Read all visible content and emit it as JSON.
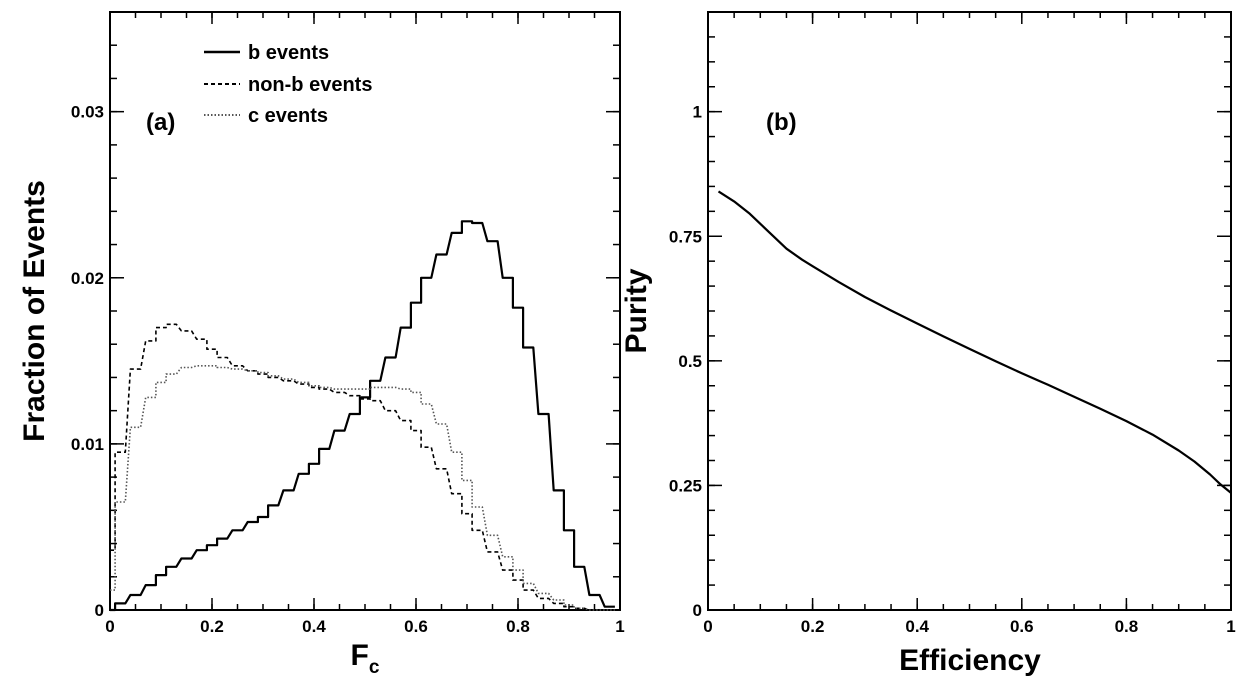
{
  "chart_data": [
    {
      "type": "line",
      "panel": "(a)",
      "xlabel": "F",
      "xlabel_sub": "c",
      "ylabel": "Fraction of Events",
      "xlim": [
        0,
        1
      ],
      "ylim": [
        0,
        0.036
      ],
      "xticks": [
        0,
        0.2,
        0.4,
        0.6,
        0.8,
        1
      ],
      "xtick_labels": [
        "0",
        "0.2",
        "0.4",
        "0.6",
        "0.8",
        "1"
      ],
      "yticks": [
        0,
        0.01,
        0.02,
        0.03
      ],
      "ytick_labels": [
        "0",
        "0.01",
        "0.02",
        "0.03"
      ],
      "legend_position": "top-center",
      "x": [
        0.0,
        0.02,
        0.05,
        0.08,
        0.1,
        0.12,
        0.15,
        0.18,
        0.2,
        0.22,
        0.25,
        0.28,
        0.3,
        0.32,
        0.35,
        0.38,
        0.4,
        0.42,
        0.45,
        0.48,
        0.5,
        0.52,
        0.55,
        0.58,
        0.6,
        0.62,
        0.65,
        0.68,
        0.7,
        0.72,
        0.75,
        0.78,
        0.8,
        0.82,
        0.85,
        0.88,
        0.9,
        0.92,
        0.95,
        0.98
      ],
      "series": [
        {
          "name": "b events",
          "style": "solid",
          "values": [
            0.0,
            0.0004,
            0.0009,
            0.0015,
            0.0021,
            0.0026,
            0.0031,
            0.0036,
            0.0039,
            0.0043,
            0.0048,
            0.0053,
            0.0056,
            0.0063,
            0.0072,
            0.0082,
            0.0088,
            0.0097,
            0.0108,
            0.0118,
            0.0128,
            0.0138,
            0.0152,
            0.017,
            0.0185,
            0.02,
            0.0214,
            0.0227,
            0.0234,
            0.0233,
            0.0222,
            0.02,
            0.0182,
            0.0158,
            0.0118,
            0.0072,
            0.0048,
            0.0026,
            0.0009,
            0.0002
          ]
        },
        {
          "name": "non-b events",
          "style": "dashed",
          "values": [
            0.0036,
            0.0095,
            0.0145,
            0.0162,
            0.017,
            0.0172,
            0.0168,
            0.0163,
            0.0157,
            0.0152,
            0.0147,
            0.0144,
            0.0142,
            0.014,
            0.0138,
            0.0136,
            0.0134,
            0.0133,
            0.0131,
            0.0129,
            0.0127,
            0.0126,
            0.012,
            0.0114,
            0.0108,
            0.0098,
            0.0085,
            0.007,
            0.0058,
            0.0048,
            0.0035,
            0.0024,
            0.0018,
            0.0012,
            0.0007,
            0.0004,
            0.0002,
            0.0001,
            0.0,
            0.0
          ]
        },
        {
          "name": "c events",
          "style": "dotted",
          "values": [
            0.0012,
            0.0065,
            0.011,
            0.0128,
            0.0137,
            0.0142,
            0.0146,
            0.0147,
            0.0147,
            0.0146,
            0.0145,
            0.0144,
            0.0143,
            0.0141,
            0.0139,
            0.0137,
            0.0135,
            0.0134,
            0.0133,
            0.0133,
            0.0133,
            0.0134,
            0.0134,
            0.0133,
            0.0131,
            0.0124,
            0.0112,
            0.0095,
            0.0078,
            0.0062,
            0.0045,
            0.0032,
            0.0024,
            0.0016,
            0.001,
            0.0006,
            0.0003,
            0.0001,
            0.0,
            0.0
          ]
        }
      ]
    },
    {
      "type": "line",
      "panel": "(b)",
      "xlabel": "Efficiency",
      "ylabel": "Purity",
      "xlim": [
        0,
        1
      ],
      "ylim": [
        0,
        1.2
      ],
      "xticks": [
        0,
        0.2,
        0.4,
        0.6,
        0.8,
        1
      ],
      "xtick_labels": [
        "0",
        "0.2",
        "0.4",
        "0.6",
        "0.8",
        "1"
      ],
      "yticks": [
        0,
        0.25,
        0.5,
        0.75,
        1
      ],
      "ytick_labels": [
        "0",
        "0.25",
        "0.5",
        "0.75",
        "1"
      ],
      "series": [
        {
          "x": [
            0.02,
            0.05,
            0.08,
            0.1,
            0.12,
            0.15,
            0.18,
            0.2,
            0.25,
            0.3,
            0.35,
            0.4,
            0.45,
            0.5,
            0.55,
            0.6,
            0.65,
            0.7,
            0.75,
            0.8,
            0.85,
            0.9,
            0.93,
            0.96,
            0.98,
            1.0
          ],
          "values": [
            0.84,
            0.82,
            0.795,
            0.775,
            0.755,
            0.725,
            0.703,
            0.69,
            0.658,
            0.628,
            0.601,
            0.575,
            0.549,
            0.524,
            0.499,
            0.475,
            0.452,
            0.428,
            0.404,
            0.379,
            0.352,
            0.32,
            0.298,
            0.272,
            0.252,
            0.235
          ]
        }
      ]
    }
  ]
}
